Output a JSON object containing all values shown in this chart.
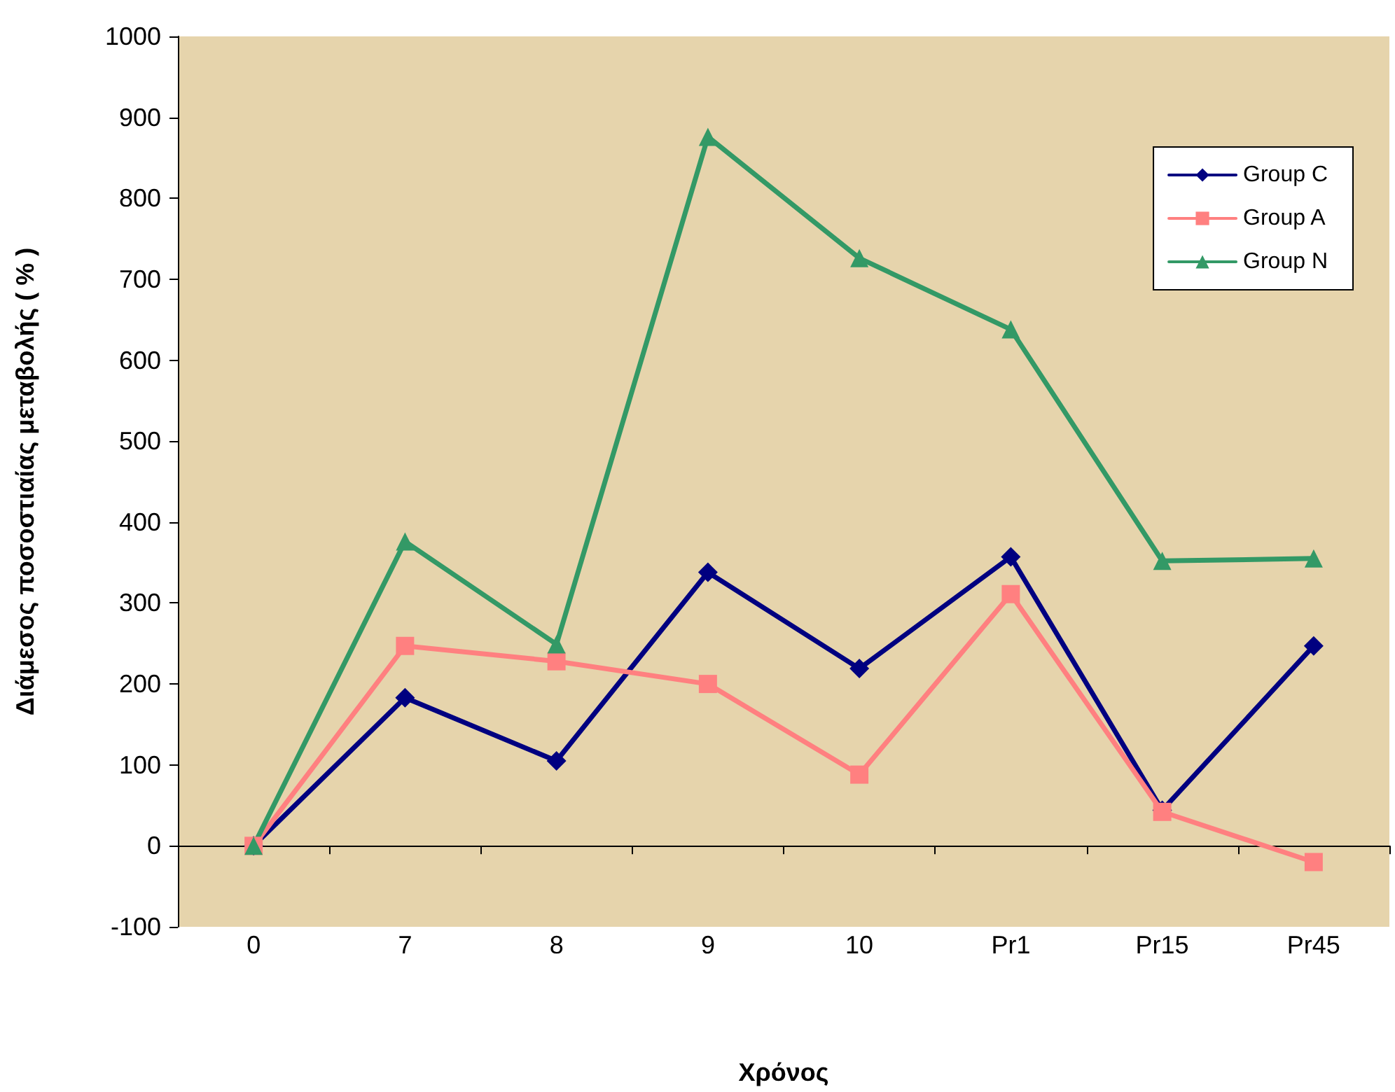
{
  "chart_data": {
    "type": "line",
    "xlabel": "Χρόνος",
    "ylabel": "Διάμεσος ποσοστιαίας μεταβολής ( % )",
    "categories": [
      "0",
      "7",
      "8",
      "9",
      "10",
      "Pr1",
      "Pr15",
      "Pr45"
    ],
    "series": [
      {
        "name": "Group C",
        "color": "#000080",
        "marker": "diamond",
        "values": [
          0,
          183,
          105,
          338,
          219,
          357,
          44,
          247
        ]
      },
      {
        "name": "Group A",
        "color": "#ff8080",
        "marker": "square",
        "values": [
          0,
          247,
          228,
          200,
          88,
          311,
          42,
          -20
        ]
      },
      {
        "name": "Group N",
        "color": "#339966",
        "marker": "triangle",
        "values": [
          0,
          376,
          249,
          876,
          726,
          638,
          352,
          355
        ]
      }
    ],
    "ylim": [
      -100,
      1000
    ],
    "yticks": [
      -100,
      0,
      100,
      200,
      300,
      400,
      500,
      600,
      700,
      800,
      900,
      1000
    ],
    "legend": "top right",
    "line_style": "solid"
  }
}
